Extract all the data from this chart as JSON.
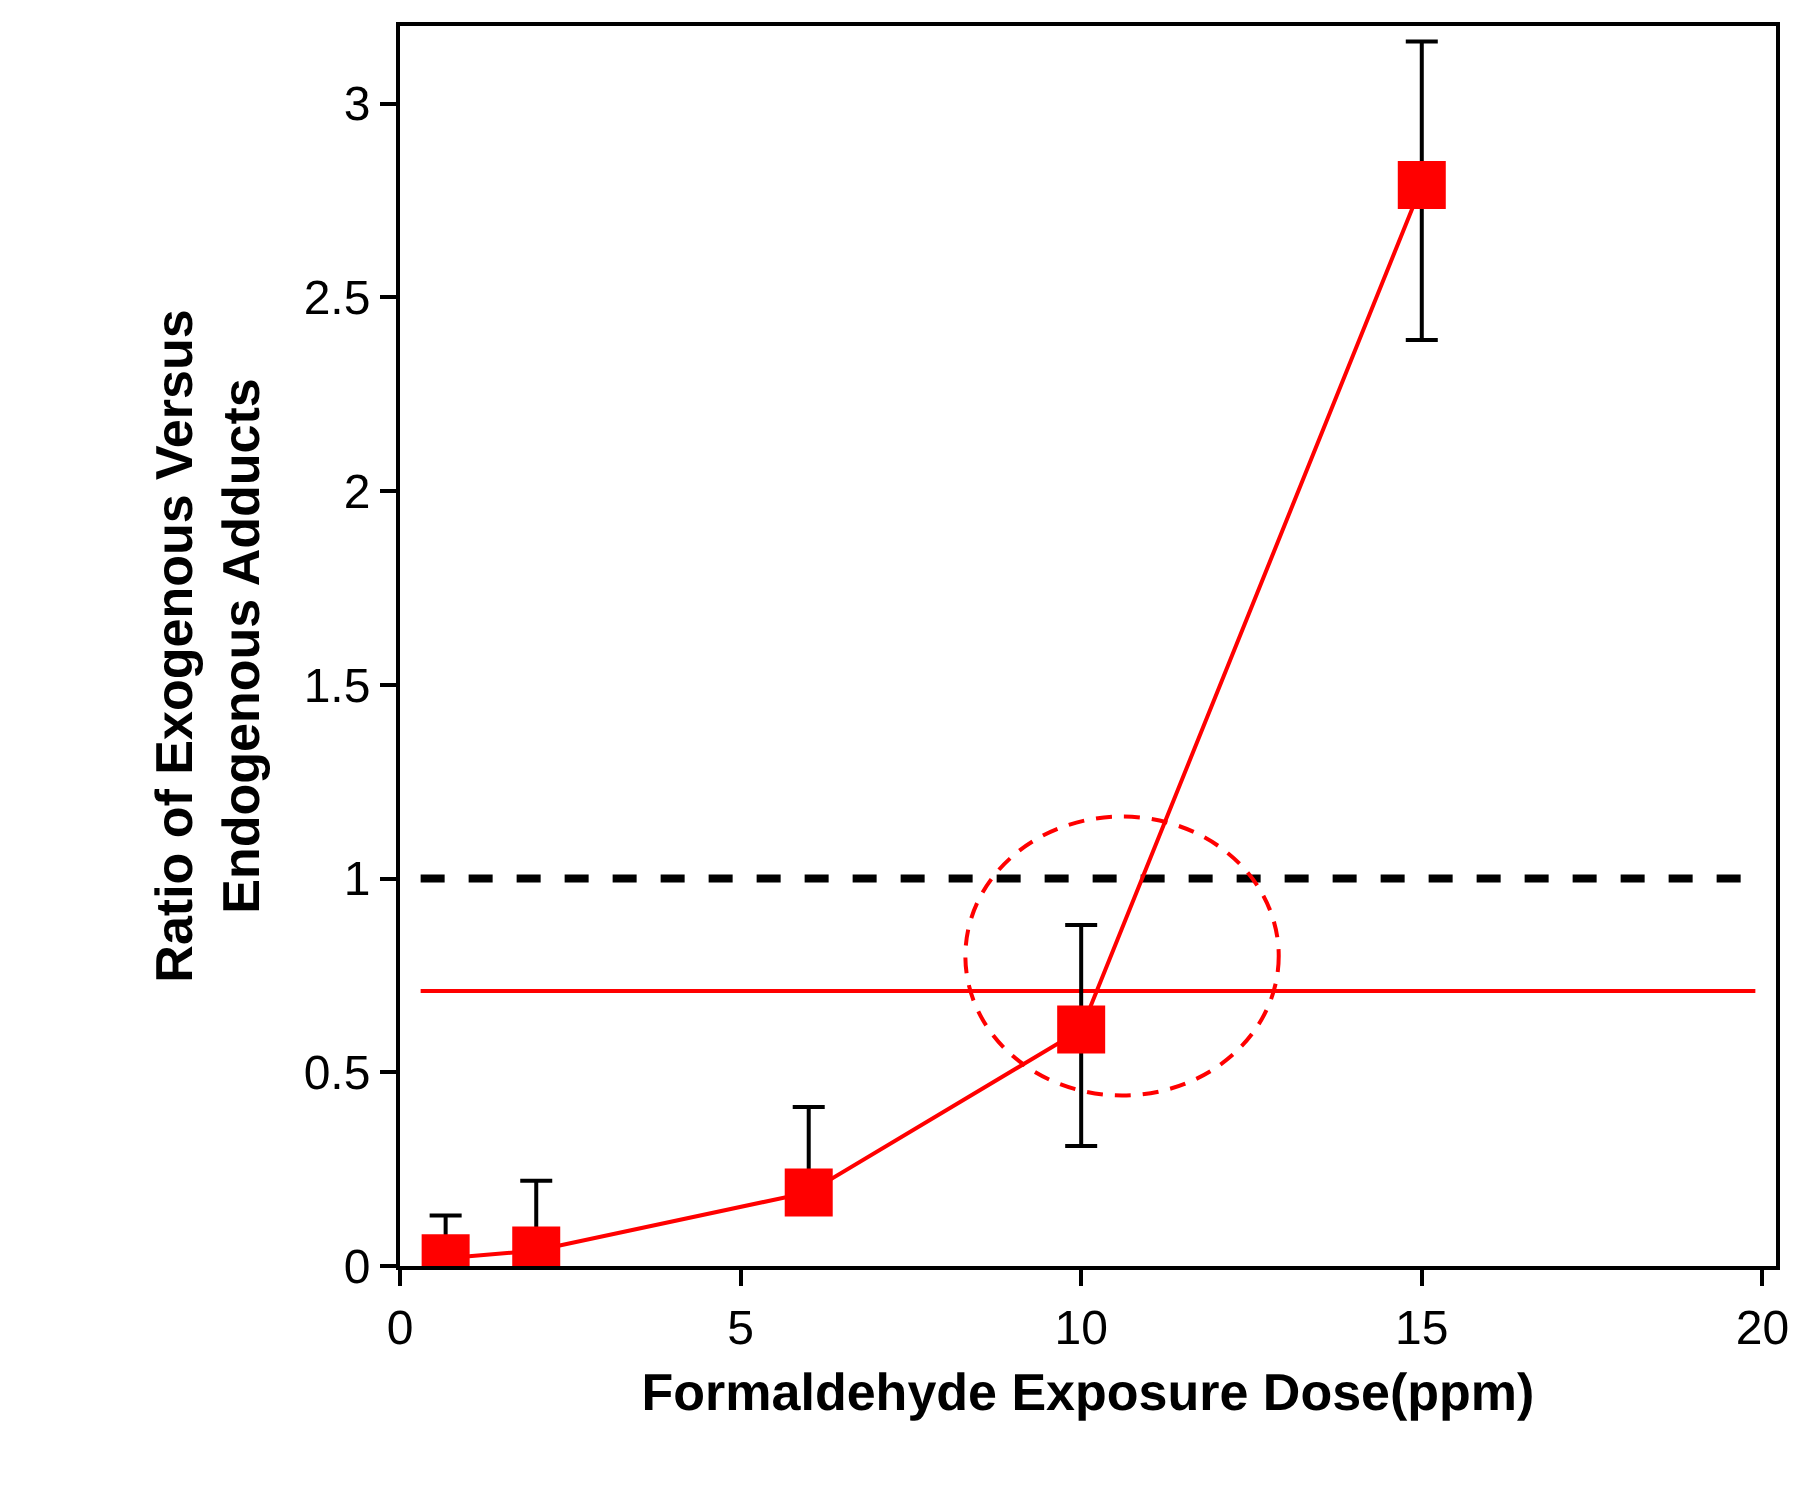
{
  "chart_data": {
    "type": "line",
    "xlabel": "Formaldehyde Exposure Dose(ppm)",
    "ylabel": "Ratio of Exogenous Versus\nEndogenous Adducts",
    "x": [
      0.67,
      2,
      6,
      10,
      15
    ],
    "series": [
      {
        "color": "#ff0000",
        "values": [
          0.02,
          0.04,
          0.19,
          0.61,
          2.79
        ],
        "errors": [
          [
            0.02,
            0.13
          ],
          [
            0.04,
            0.22
          ],
          [
            0.19,
            0.41
          ],
          [
            0.31,
            0.88
          ],
          [
            2.39,
            3.16
          ]
        ]
      }
    ],
    "marker": "square",
    "line_style": "solid",
    "xlim": [
      0,
      20.2
    ],
    "xticks": [
      0,
      5,
      10,
      15,
      20
    ],
    "ylim": [
      0,
      3.2
    ],
    "yticks": [
      0,
      0.5,
      1,
      1.5,
      2,
      2.5,
      3
    ],
    "ref_lines": [
      {
        "axis": "y",
        "value": 1,
        "color": "#000000",
        "line_style": "dashed"
      },
      {
        "axis": "y",
        "value": 0.71,
        "color": "#ff0000",
        "line_style": "solid"
      }
    ],
    "grid": false
  }
}
